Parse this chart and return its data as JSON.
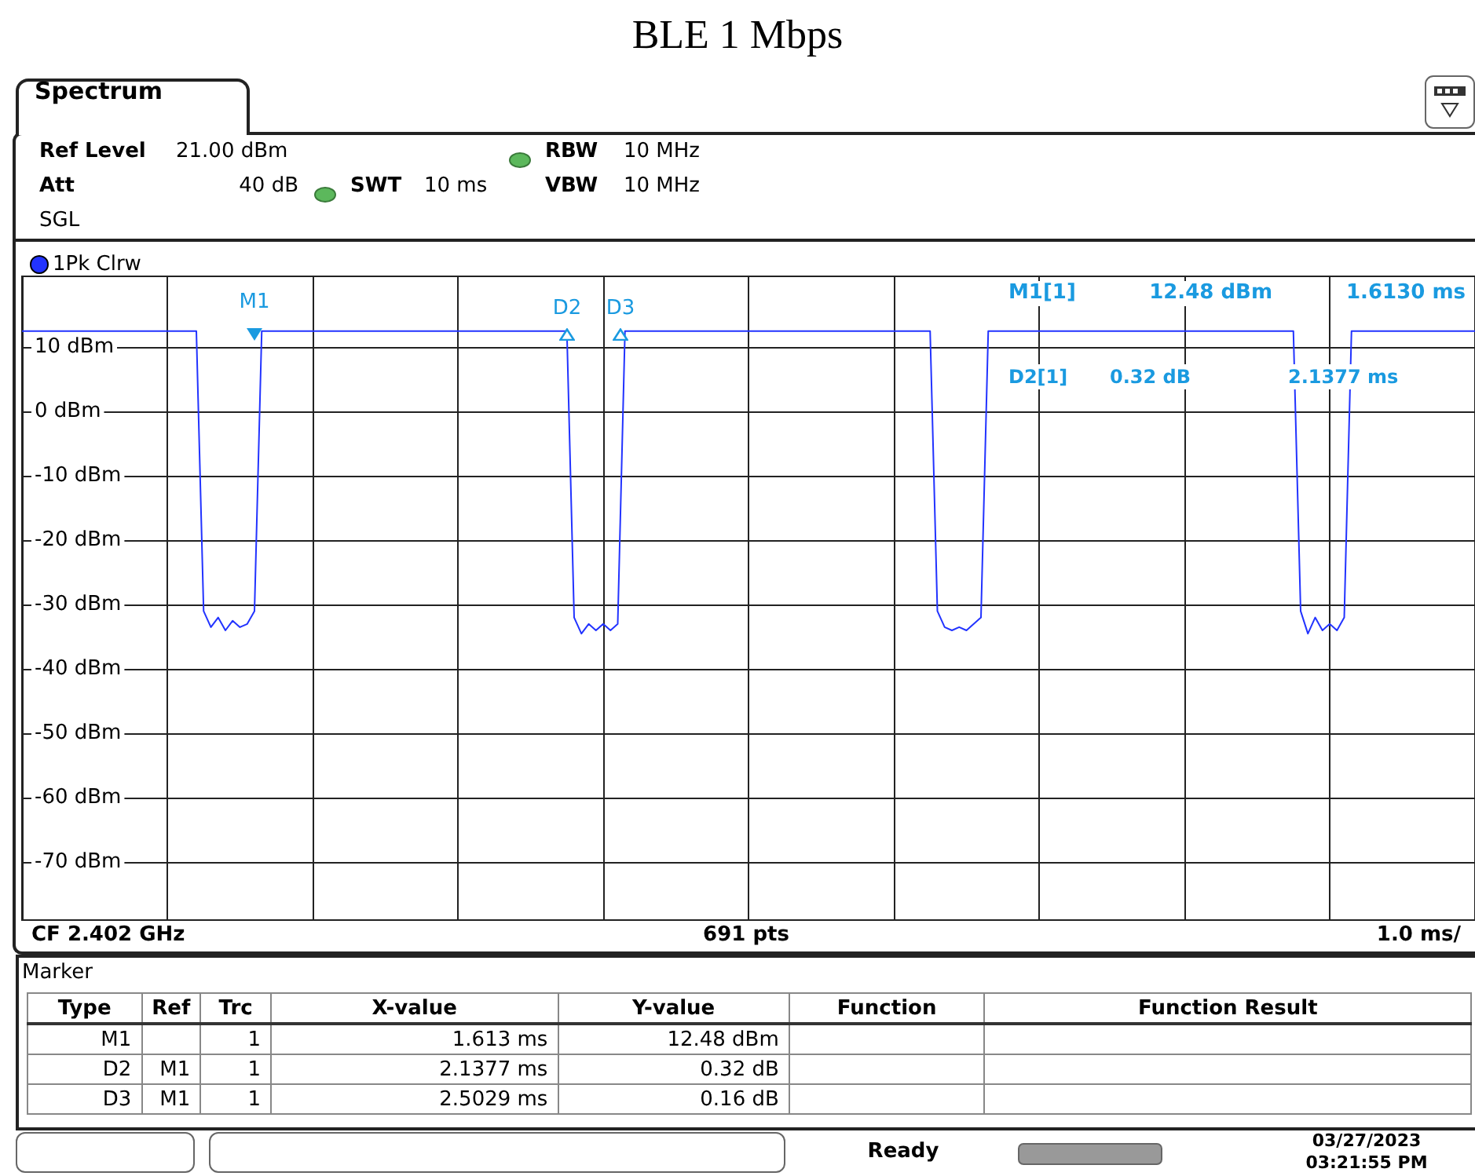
{
  "chart_data": {
    "type": "line",
    "title": "BLE 1 Mbps",
    "categories": [
      null,
      null,
      null,
      null,
      null,
      null,
      null,
      null,
      null,
      null,
      null,
      null,
      null,
      null,
      null,
      null,
      null,
      null,
      null,
      null,
      null,
      null,
      null,
      null,
      null,
      null,
      null,
      null,
      null,
      null,
      null,
      null,
      null,
      null,
      null,
      null,
      null,
      null,
      null,
      null,
      null,
      null,
      null,
      null,
      null,
      null,
      null,
      null,
      null,
      null,
      null,
      null,
      null,
      null,
      null,
      null,
      null,
      null,
      null,
      null,
      null,
      null,
      null,
      null,
      null,
      null,
      null,
      null,
      null,
      null,
      null,
      null,
      null,
      null,
      null,
      null,
      null,
      null,
      null,
      null,
      null,
      null,
      null,
      null,
      null,
      null,
      null,
      null,
      null,
      null,
      null,
      null,
      null,
      null,
      null,
      null,
      null,
      null,
      null,
      null,
      null,
      null,
      null,
      null,
      null,
      null,
      null,
      null,
      null,
      null,
      null,
      null,
      null,
      null,
      null,
      null,
      null,
      null,
      null,
      null,
      null,
      null,
      null,
      null,
      null,
      null,
      null,
      null,
      null,
      null,
      null,
      null,
      null,
      null,
      null,
      null,
      null,
      null,
      null,
      null,
      null,
      null,
      null,
      null,
      null,
      null,
      null,
      null,
      null,
      null,
      null,
      null,
      null,
      null,
      null,
      null,
      null,
      null,
      null,
      null,
      null,
      null,
      null,
      null,
      null,
      null,
      null,
      null,
      null,
      null,
      null,
      null,
      null,
      null,
      null,
      null,
      null,
      null,
      null,
      null,
      null,
      null,
      null,
      null,
      null,
      null,
      null,
      null,
      null,
      null,
      null,
      null,
      null,
      null,
      null,
      null,
      null,
      null,
      null,
      null,
      null
    ],
    "ylim": [
      -79,
      21
    ],
    "yticks": [
      {
        "value": 10,
        "label": "10 dBm"
      },
      {
        "value": 0,
        "label": "0 dBm"
      },
      {
        "value": -10,
        "label": "-10 dBm"
      },
      {
        "value": -20,
        "label": "-20 dBm"
      },
      {
        "value": -30,
        "label": "-30 dBm"
      },
      {
        "value": -40,
        "label": "-40 dBm"
      },
      {
        "value": -50,
        "label": "-50 dBm"
      },
      {
        "value": -60,
        "label": "-60 dBm"
      },
      {
        "value": -70,
        "label": "-70 dBm"
      }
    ],
    "tick_labels": "y",
    "grid": true,
    "legend": "top left",
    "marker": "none",
    "line_style": "solid",
    "series": [
      {
        "name": "1Pk Clrw",
        "color": "#2233ff",
        "values": [
          12.5,
          12.5,
          12.5,
          12.5,
          12.5,
          12.5,
          12.5,
          12.5,
          12.5,
          12.5,
          12.5,
          12.5,
          12.5,
          12.5,
          12.5,
          12.5,
          12.5,
          12.5,
          12.5,
          12.5,
          12.5,
          12.5,
          12.5,
          12.5,
          12.5,
          -31,
          -33.5,
          -32,
          -34,
          -32.5,
          -33.5,
          -33,
          -31,
          12.5,
          12.5,
          12.5,
          12.5,
          12.5,
          12.5,
          12.5,
          12.5,
          12.5,
          12.5,
          12.5,
          12.5,
          12.5,
          12.5,
          12.5,
          12.5,
          12.5,
          12.5,
          12.5,
          12.5,
          12.5,
          12.5,
          12.5,
          12.5,
          12.5,
          12.5,
          12.5,
          12.5,
          12.5,
          12.5,
          12.5,
          12.5,
          12.5,
          12.5,
          12.5,
          12.5,
          12.5,
          12.5,
          12.5,
          12.5,
          12.5,
          12.5,
          12.5,
          -32,
          -34.5,
          -33,
          -34,
          -33,
          -34,
          -33,
          12.5,
          12.5,
          12.5,
          12.5,
          12.5,
          12.5,
          12.5,
          12.5,
          12.5,
          12.5,
          12.5,
          12.5,
          12.5,
          12.5,
          12.5,
          12.5,
          12.5,
          12.5,
          12.5,
          12.5,
          12.5,
          12.5,
          12.5,
          12.5,
          12.5,
          12.5,
          12.5,
          12.5,
          12.5,
          12.5,
          12.5,
          12.5,
          12.5,
          12.5,
          12.5,
          12.5,
          12.5,
          12.5,
          12.5,
          12.5,
          12.5,
          12.5,
          12.5,
          -31,
          -33.5,
          -34,
          -33.5,
          -34,
          -33,
          -32,
          12.5,
          12.5,
          12.5,
          12.5,
          12.5,
          12.5,
          12.5,
          12.5,
          12.5,
          12.5,
          12.5,
          12.5,
          12.5,
          12.5,
          12.5,
          12.5,
          12.5,
          12.5,
          12.5,
          12.5,
          12.5,
          12.5,
          12.5,
          12.5,
          12.5,
          12.5,
          12.5,
          12.5,
          12.5,
          12.5,
          12.5,
          12.5,
          12.5,
          12.5,
          12.5,
          12.5,
          12.5,
          12.5,
          12.5,
          12.5,
          12.5,
          12.5,
          12.5,
          -31,
          -34.5,
          -32,
          -34,
          -33,
          -34,
          -32,
          12.5,
          12.5,
          12.5,
          12.5,
          12.5,
          12.5,
          12.5,
          12.5,
          12.5,
          12.5,
          12.5,
          12.5,
          12.5,
          12.5,
          12.5,
          12.5,
          12.5,
          12.5
        ]
      }
    ],
    "annotations": [
      "Spectrum",
      "Ref Level",
      "21.00 dBm",
      "Att",
      "40 dB",
      "SWT",
      "10 ms",
      "RBW",
      "10 MHz",
      "VBW",
      "10 MHz",
      "SGL",
      "M1[1]",
      "12.48 dBm",
      "1.6130 ms",
      "D2[1]",
      "0.32 dB",
      "2.1377 ms",
      "CF 2.402 GHz",
      "691 pts",
      "1.0 ms/",
      "Marker",
      "Type",
      "Ref",
      "Trc",
      "X-value",
      "Y-value",
      "Function",
      "Function Result",
      "M1",
      "1",
      "1.613 ms",
      "12.48 dBm",
      "D2",
      "M1",
      "1",
      "2.1377 ms",
      "0.32 dB",
      "D3",
      "M1",
      "1",
      "2.5029 ms",
      "0.16 dB",
      "Ready",
      "03/27/2023",
      "03:21:55 PM",
      "M1",
      "D2",
      "D3"
    ]
  }
}
